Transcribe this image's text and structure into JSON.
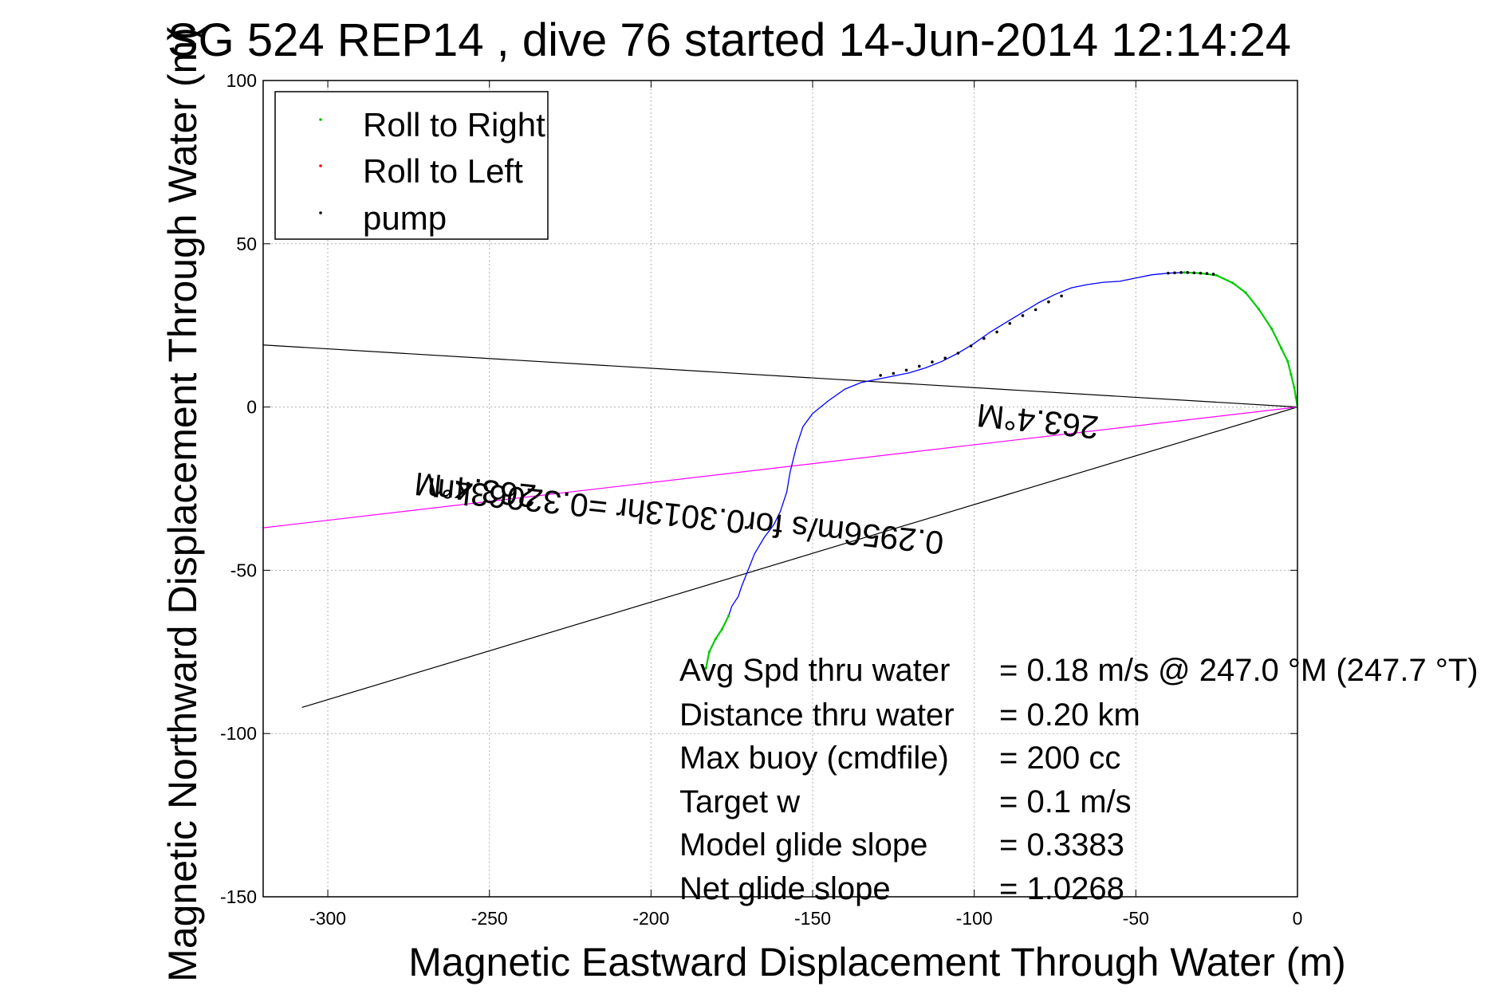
{
  "chart_data": {
    "type": "line",
    "title": "SG 524   REP14  , dive 76 started 14-Jun-2014 12:14:24",
    "title_overlap_char": "(",
    "xlabel": "Magnetic Eastward Displacement Through Water (m)",
    "ylabel": "Magnetic Northward Displacement Through Water (m)",
    "xlim": [
      -320,
      0
    ],
    "ylim": [
      -150,
      100
    ],
    "xticks": [
      -300,
      -250,
      -200,
      -150,
      -100,
      -50,
      0
    ],
    "yticks": [
      100,
      50,
      0,
      -50,
      -100,
      -150
    ],
    "grid": true,
    "legend": {
      "placement": "top-left",
      "entries": [
        {
          "label": "Roll to Right",
          "color": "#00cc00"
        },
        {
          "label": "Roll to Left",
          "color": "#ff0000"
        },
        {
          "label": "pump",
          "color": "#000000"
        }
      ]
    },
    "series": [
      {
        "name": "track",
        "color": "#0000ff",
        "x": [
          0,
          -0.5,
          -1,
          -2,
          -3,
          -5,
          -8,
          -12,
          -16,
          -20,
          -25,
          -30,
          -35,
          -40,
          -45,
          -50,
          -55,
          -60,
          -65,
          -70,
          -75,
          -80,
          -85,
          -90,
          -95,
          -100,
          -105,
          -110,
          -115,
          -120,
          -125,
          -130,
          -135,
          -140,
          -145,
          -150,
          -153,
          -155,
          -157,
          -158,
          -160,
          -162,
          -165,
          -168,
          -170,
          -172,
          -173,
          -175,
          -176,
          -178,
          -180,
          -182,
          -183
        ],
        "y": [
          0,
          3,
          6,
          10,
          14,
          18,
          24,
          30,
          35,
          38,
          40.3,
          41,
          41.2,
          41,
          40.5,
          39.5,
          38.5,
          38.2,
          37.5,
          36.5,
          34.5,
          32,
          29,
          26,
          23,
          19.5,
          16.5,
          14,
          12,
          10.5,
          9.5,
          8.5,
          7.5,
          5.5,
          2,
          -2,
          -6,
          -12,
          -20,
          -26,
          -32,
          -36,
          -40,
          -45,
          -50,
          -55,
          -58,
          -61,
          -64,
          -68,
          -71,
          -75,
          -80
        ]
      },
      {
        "name": "roll-right-segment-1",
        "color": "#00cc00",
        "x": [
          0,
          -0.5,
          -1,
          -2,
          -3,
          -5,
          -8,
          -12,
          -16,
          -20,
          -25,
          -30,
          -35
        ],
        "y": [
          0,
          3,
          6,
          10,
          14,
          18,
          24,
          30,
          35,
          38,
          40.3,
          41,
          41.2
        ]
      },
      {
        "name": "roll-right-segment-2",
        "color": "#00cc00",
        "x": [
          -176,
          -178,
          -180,
          -182,
          -183
        ],
        "y": [
          -64,
          -68,
          -71,
          -75,
          -80
        ]
      }
    ],
    "pump_points": {
      "x": [
        -73,
        -77,
        -81,
        -85,
        -89,
        -93,
        -97,
        -101,
        -105,
        -109,
        -113,
        -117,
        -121,
        -125,
        -129,
        -40,
        -38,
        -36,
        -34,
        -32,
        -30,
        -28,
        -26
      ],
      "y": [
        34,
        32.2,
        29.8,
        28,
        25.6,
        23,
        21,
        18.7,
        16.5,
        15,
        13.8,
        12.5,
        11.3,
        10.3,
        9.7,
        41,
        41.1,
        41.2,
        41.2,
        41.1,
        41,
        40.9,
        40.7
      ]
    },
    "reference_lines": [
      {
        "name": "black-line-upper",
        "color": "#000000",
        "x": [
          0,
          -320
        ],
        "y": [
          0,
          19
        ]
      },
      {
        "name": "black-line-lower",
        "color": "#000000",
        "x": [
          0,
          -308
        ],
        "y": [
          0,
          -92
        ]
      },
      {
        "name": "magenta-line",
        "color": "#ff00ff",
        "x": [
          0,
          -320
        ],
        "y": [
          0,
          -37
        ]
      }
    ],
    "annotations": [
      {
        "text": "263.4°M",
        "x": -80,
        "y": -1,
        "rotation": 186
      },
      {
        "text": "0.2956m/s for0.3013hr =0.32063km",
        "x": -189,
        "y": -30,
        "rotation": 186
      },
      {
        "text": "263.4°M",
        "x": -254,
        "y": -22,
        "rotation": 186
      }
    ],
    "stats": {
      "labels": [
        "Avg Spd thru water",
        "Distance thru water",
        "Max buoy (cmdfile)",
        "Target w",
        "Model glide slope",
        "Net glide slope"
      ],
      "values": [
        "=  0.18 m/s @ 247.0 °M (247.7 °T)",
        "=  0.20 km",
        "= 200 cc",
        "= 0.1 m/s",
        "= 0.3383",
        "= 1.0268"
      ]
    }
  }
}
